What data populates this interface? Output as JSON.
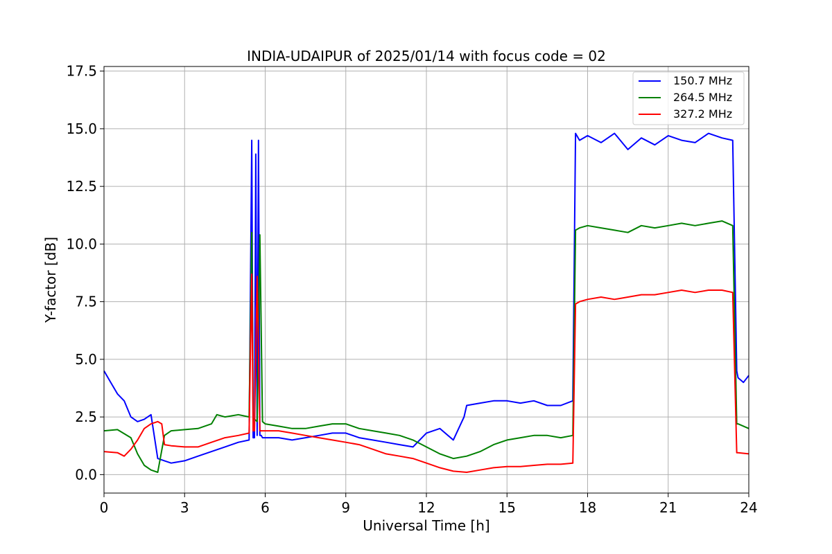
{
  "chart_data": {
    "type": "line",
    "title": "INDIA-UDAIPUR of 2025/01/14 with focus code = 02",
    "xlabel": "Universal Time [h]",
    "ylabel": "Y-factor [dB]",
    "xlim": [
      0,
      24
    ],
    "ylim": [
      -0.8,
      17.7
    ],
    "xticks": [
      0,
      3,
      6,
      9,
      12,
      15,
      18,
      21,
      24
    ],
    "yticks": [
      0.0,
      2.5,
      5.0,
      7.5,
      10.0,
      12.5,
      15.0,
      17.5
    ],
    "xtick_labels": [
      "0",
      "3",
      "6",
      "9",
      "12",
      "15",
      "18",
      "21",
      "24"
    ],
    "ytick_labels": [
      "0.0",
      "2.5",
      "5.0",
      "7.5",
      "10.0",
      "12.5",
      "15.0",
      "17.5"
    ],
    "grid": true,
    "legend_position": "top-right",
    "series": [
      {
        "name": "150.7 MHz",
        "color": "#0000ff",
        "x": [
          0,
          0.25,
          0.5,
          0.75,
          1.0,
          1.25,
          1.5,
          1.75,
          2.0,
          2.25,
          2.5,
          3.0,
          3.5,
          4.0,
          4.5,
          5.0,
          5.4,
          5.5,
          5.55,
          5.6,
          5.65,
          5.7,
          5.75,
          5.8,
          5.85,
          5.9,
          6.0,
          6.5,
          7.0,
          7.5,
          8.0,
          8.5,
          9.0,
          9.5,
          10.0,
          10.5,
          11.0,
          11.5,
          12.0,
          12.5,
          13.0,
          13.4,
          13.5,
          14.0,
          14.5,
          15.0,
          15.5,
          16.0,
          16.5,
          17.0,
          17.45,
          17.55,
          17.7,
          18.0,
          18.5,
          19.0,
          19.5,
          20.0,
          20.5,
          21.0,
          21.5,
          22.0,
          22.5,
          23.0,
          23.4,
          23.55,
          23.6,
          23.8,
          24.0
        ],
        "y": [
          4.5,
          4.0,
          3.5,
          3.2,
          2.5,
          2.3,
          2.4,
          2.6,
          0.7,
          0.6,
          0.5,
          0.6,
          0.8,
          1.0,
          1.2,
          1.4,
          1.5,
          14.5,
          1.6,
          1.6,
          13.9,
          1.7,
          14.5,
          1.7,
          1.7,
          1.6,
          1.6,
          1.6,
          1.5,
          1.6,
          1.7,
          1.8,
          1.8,
          1.6,
          1.5,
          1.4,
          1.3,
          1.2,
          1.8,
          2.0,
          1.5,
          2.5,
          3.0,
          3.1,
          3.2,
          3.2,
          3.1,
          3.2,
          3.0,
          3.0,
          3.2,
          14.8,
          14.5,
          14.7,
          14.4,
          14.8,
          14.1,
          14.6,
          14.3,
          14.7,
          14.5,
          14.4,
          14.8,
          14.6,
          14.5,
          4.5,
          4.2,
          4.0,
          4.3
        ]
      },
      {
        "name": "264.5 MHz",
        "color": "#008000",
        "x": [
          0,
          0.5,
          1.0,
          1.25,
          1.5,
          1.75,
          2.0,
          2.25,
          2.5,
          3.0,
          3.5,
          4.0,
          4.2,
          4.5,
          5.0,
          5.4,
          5.5,
          5.55,
          5.6,
          5.7,
          5.8,
          5.9,
          6.0,
          6.5,
          7.0,
          7.5,
          8.0,
          8.5,
          9.0,
          9.5,
          10.0,
          10.5,
          11.0,
          11.5,
          12.0,
          12.5,
          13.0,
          13.5,
          14.0,
          14.5,
          15.0,
          15.5,
          16.0,
          16.5,
          17.0,
          17.45,
          17.55,
          17.7,
          18.0,
          18.5,
          19.0,
          19.5,
          20.0,
          20.5,
          21.0,
          21.5,
          22.0,
          22.5,
          23.0,
          23.4,
          23.55,
          23.6,
          24.0
        ],
        "y": [
          1.9,
          1.95,
          1.6,
          0.9,
          0.4,
          0.2,
          0.1,
          1.7,
          1.9,
          1.95,
          2.0,
          2.2,
          2.6,
          2.5,
          2.6,
          2.5,
          10.5,
          2.4,
          2.4,
          2.3,
          10.4,
          2.3,
          2.2,
          2.1,
          2.0,
          2.0,
          2.1,
          2.2,
          2.2,
          2.0,
          1.9,
          1.8,
          1.7,
          1.5,
          1.2,
          0.9,
          0.7,
          0.8,
          1.0,
          1.3,
          1.5,
          1.6,
          1.7,
          1.7,
          1.6,
          1.7,
          10.6,
          10.7,
          10.8,
          10.7,
          10.6,
          10.5,
          10.8,
          10.7,
          10.8,
          10.9,
          10.8,
          10.9,
          11.0,
          10.8,
          2.2,
          2.2,
          2.0
        ]
      },
      {
        "name": "327.2 MHz",
        "color": "#ff0000",
        "x": [
          0,
          0.5,
          0.75,
          1.0,
          1.25,
          1.5,
          1.75,
          2.0,
          2.15,
          2.25,
          2.5,
          3.0,
          3.5,
          4.0,
          4.5,
          5.0,
          5.4,
          5.5,
          5.55,
          5.6,
          5.7,
          5.8,
          5.9,
          6.0,
          6.5,
          7.0,
          7.5,
          8.0,
          8.5,
          9.0,
          9.5,
          10.0,
          10.5,
          11.0,
          11.5,
          12.0,
          12.5,
          13.0,
          13.5,
          14.0,
          14.5,
          15.0,
          15.5,
          16.0,
          16.5,
          17.0,
          17.45,
          17.55,
          17.7,
          18.0,
          18.5,
          19.0,
          19.5,
          20.0,
          20.5,
          21.0,
          21.5,
          22.0,
          22.5,
          23.0,
          23.4,
          23.55,
          23.6,
          24.0
        ],
        "y": [
          1.0,
          0.95,
          0.8,
          1.1,
          1.5,
          2.0,
          2.2,
          2.3,
          2.2,
          1.3,
          1.25,
          1.2,
          1.2,
          1.4,
          1.6,
          1.7,
          1.8,
          8.7,
          1.9,
          1.9,
          8.6,
          1.9,
          1.9,
          1.9,
          1.9,
          1.8,
          1.7,
          1.6,
          1.5,
          1.4,
          1.3,
          1.1,
          0.9,
          0.8,
          0.7,
          0.5,
          0.3,
          0.15,
          0.1,
          0.2,
          0.3,
          0.35,
          0.35,
          0.4,
          0.45,
          0.45,
          0.5,
          7.4,
          7.5,
          7.6,
          7.7,
          7.6,
          7.7,
          7.8,
          7.8,
          7.9,
          8.0,
          7.9,
          8.0,
          8.0,
          7.9,
          0.95,
          0.95,
          0.9
        ]
      }
    ]
  }
}
